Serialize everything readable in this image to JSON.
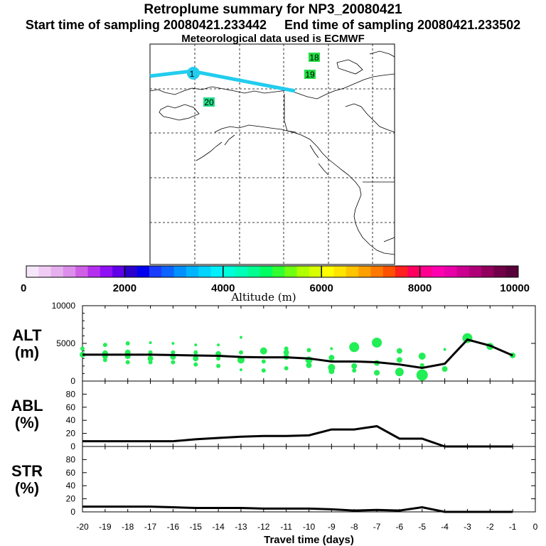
{
  "header": {
    "title": "Retroplume summary for NP3_20080421",
    "start_label": "Start time of sampling 20080421.233442",
    "end_label": "End time of sampling 20080421.233502",
    "met_label": "Meteorological data used is ECMWF"
  },
  "map": {
    "plume_color": "#22ccee",
    "day_labels": [
      {
        "text": "18",
        "color": "#22dd44"
      },
      {
        "text": "19",
        "color": "#22dd44"
      },
      {
        "text": "20",
        "color": "#22dd88"
      },
      {
        "text": "1",
        "color": "#22ccee"
      }
    ]
  },
  "colorbar": {
    "title": "Altitude (m)",
    "tick_labels": [
      "0",
      "2000",
      "4000",
      "6000",
      "8000",
      "10000"
    ],
    "colors": [
      "#f6e6f9",
      "#f0ccf4",
      "#e6b0ee",
      "#dc8eea",
      "#cf60e6",
      "#b530ee",
      "#9010f4",
      "#6000e8",
      "#2b00cc",
      "#0000ee",
      "#1a3cff",
      "#0b64ff",
      "#0090ff",
      "#00b4ff",
      "#00d4ff",
      "#00f0ff",
      "#00ffd8",
      "#00ffb8",
      "#00ff90",
      "#00ff60",
      "#30ff30",
      "#70ff10",
      "#b0ff00",
      "#d8ff00",
      "#ffff00",
      "#ffe400",
      "#ffc400",
      "#ffa000",
      "#ff7800",
      "#ff5000",
      "#ff2020",
      "#ff0060",
      "#ff0090",
      "#ff00b0",
      "#e800a8",
      "#cc0090",
      "#b00078",
      "#90005c",
      "#700048",
      "#58003a"
    ]
  },
  "chart_data": [
    {
      "type": "line",
      "panel": "altitude",
      "ylabel": [
        "ALT",
        "(m)"
      ],
      "ylim": [
        0,
        10000
      ],
      "y_ticks": [
        "0",
        "5000",
        "10000"
      ],
      "xlim": [
        -20,
        0
      ],
      "x": [
        -20,
        -19,
        -18,
        -17,
        -16,
        -15,
        -14,
        -13,
        -12,
        -11,
        -10,
        -9,
        -8,
        -7,
        -6,
        -5,
        -4,
        -3,
        -2,
        -1
      ],
      "values": [
        3500,
        3500,
        3500,
        3500,
        3450,
        3400,
        3350,
        3200,
        3150,
        3150,
        3000,
        2600,
        2600,
        2500,
        2200,
        1750,
        2300,
        5500,
        4700,
        3400
      ],
      "marker_color": "#22ee55",
      "points": [
        {
          "x": -20,
          "y": 4300,
          "s": 3
        },
        {
          "x": -20,
          "y": 3500,
          "s": 4
        },
        {
          "x": -19,
          "y": 4800,
          "s": 3
        },
        {
          "x": -19,
          "y": 3700,
          "s": 4
        },
        {
          "x": -19,
          "y": 3300,
          "s": 4
        },
        {
          "x": -19,
          "y": 2800,
          "s": 3
        },
        {
          "x": -18,
          "y": 5000,
          "s": 3
        },
        {
          "x": -18,
          "y": 3800,
          "s": 4
        },
        {
          "x": -18,
          "y": 3300,
          "s": 4
        },
        {
          "x": -18,
          "y": 2500,
          "s": 3
        },
        {
          "x": -17,
          "y": 5100,
          "s": 2
        },
        {
          "x": -17,
          "y": 3800,
          "s": 3
        },
        {
          "x": -17,
          "y": 3000,
          "s": 4
        },
        {
          "x": -17,
          "y": 2500,
          "s": 3
        },
        {
          "x": -16,
          "y": 5000,
          "s": 2
        },
        {
          "x": -16,
          "y": 3800,
          "s": 3
        },
        {
          "x": -16,
          "y": 3200,
          "s": 4
        },
        {
          "x": -16,
          "y": 2500,
          "s": 3
        },
        {
          "x": -15,
          "y": 4800,
          "s": 2
        },
        {
          "x": -15,
          "y": 3800,
          "s": 3
        },
        {
          "x": -15,
          "y": 3000,
          "s": 4
        },
        {
          "x": -15,
          "y": 2200,
          "s": 3
        },
        {
          "x": -14,
          "y": 4800,
          "s": 2
        },
        {
          "x": -14,
          "y": 3600,
          "s": 4
        },
        {
          "x": -14,
          "y": 3000,
          "s": 3
        },
        {
          "x": -14,
          "y": 2000,
          "s": 3
        },
        {
          "x": -13,
          "y": 5800,
          "s": 2
        },
        {
          "x": -13,
          "y": 3800,
          "s": 3
        },
        {
          "x": -13,
          "y": 2800,
          "s": 5
        },
        {
          "x": -13,
          "y": 1500,
          "s": 2
        },
        {
          "x": -12,
          "y": 4000,
          "s": 5
        },
        {
          "x": -12,
          "y": 2600,
          "s": 3
        },
        {
          "x": -12,
          "y": 1400,
          "s": 3
        },
        {
          "x": -11,
          "y": 4300,
          "s": 3
        },
        {
          "x": -11,
          "y": 3800,
          "s": 4
        },
        {
          "x": -11,
          "y": 3200,
          "s": 4
        },
        {
          "x": -11,
          "y": 1700,
          "s": 3
        },
        {
          "x": -10,
          "y": 4100,
          "s": 3
        },
        {
          "x": -10,
          "y": 2800,
          "s": 5
        },
        {
          "x": -10,
          "y": 2100,
          "s": 4
        },
        {
          "x": -9,
          "y": 4300,
          "s": 2
        },
        {
          "x": -9,
          "y": 3100,
          "s": 4
        },
        {
          "x": -9,
          "y": 1800,
          "s": 5
        },
        {
          "x": -9,
          "y": 1300,
          "s": 4
        },
        {
          "x": -8,
          "y": 4500,
          "s": 7
        },
        {
          "x": -8,
          "y": 2000,
          "s": 4
        },
        {
          "x": -8,
          "y": 1400,
          "s": 3
        },
        {
          "x": -7,
          "y": 5100,
          "s": 7
        },
        {
          "x": -7,
          "y": 2400,
          "s": 4
        },
        {
          "x": -7,
          "y": 1100,
          "s": 4
        },
        {
          "x": -6,
          "y": 4000,
          "s": 4
        },
        {
          "x": -6,
          "y": 2800,
          "s": 4
        },
        {
          "x": -6,
          "y": 1200,
          "s": 6
        },
        {
          "x": -5,
          "y": 3300,
          "s": 5
        },
        {
          "x": -5,
          "y": 2100,
          "s": 3
        },
        {
          "x": -5,
          "y": 800,
          "s": 8
        },
        {
          "x": -4,
          "y": 4200,
          "s": 2
        },
        {
          "x": -4,
          "y": 1600,
          "s": 4
        },
        {
          "x": -3,
          "y": 5700,
          "s": 7
        },
        {
          "x": -2,
          "y": 4600,
          "s": 5
        },
        {
          "x": -1,
          "y": 3400,
          "s": 4
        }
      ]
    },
    {
      "type": "line",
      "panel": "abl",
      "ylabel": [
        "ABL",
        "(%)"
      ],
      "ylim": [
        0,
        100
      ],
      "y_ticks": [
        "0",
        "20",
        "40",
        "60",
        "80"
      ],
      "xlim": [
        -20,
        0
      ],
      "x": [
        -20,
        -19,
        -18,
        -17,
        -16,
        -15,
        -14,
        -13,
        -12,
        -11,
        -10,
        -9,
        -8,
        -7,
        -6,
        -5,
        -4,
        -3,
        -2,
        -1
      ],
      "values": [
        8,
        8,
        8,
        8,
        8,
        11,
        13,
        15,
        16,
        16,
        17,
        26,
        26,
        31,
        12,
        12,
        0,
        0,
        0,
        0
      ]
    },
    {
      "type": "line",
      "panel": "stratosphere",
      "ylabel": [
        "STR",
        "(%)"
      ],
      "ylim": [
        0,
        100
      ],
      "y_ticks": [
        "0",
        "20",
        "40",
        "60",
        "80"
      ],
      "xlim": [
        -20,
        0
      ],
      "x_ticks": [
        "-20",
        "-19",
        "-18",
        "-17",
        "-16",
        "-15",
        "-14",
        "-13",
        "-12",
        "-11",
        "-10",
        "-9",
        "-8",
        "-7",
        "-6",
        "-5",
        "-4",
        "-3",
        "-2",
        "-1",
        "0"
      ],
      "xlabel": "Travel time (days)",
      "x": [
        -20,
        -19,
        -18,
        -17,
        -16,
        -15,
        -14,
        -13,
        -12,
        -11,
        -10,
        -9,
        -8,
        -7,
        -6,
        -5,
        -4,
        -3,
        -2,
        -1
      ],
      "values": [
        8,
        8,
        8,
        8,
        7,
        6,
        6,
        6,
        5,
        5,
        5,
        4,
        2,
        3,
        2,
        7,
        0,
        0,
        0,
        0
      ]
    }
  ]
}
